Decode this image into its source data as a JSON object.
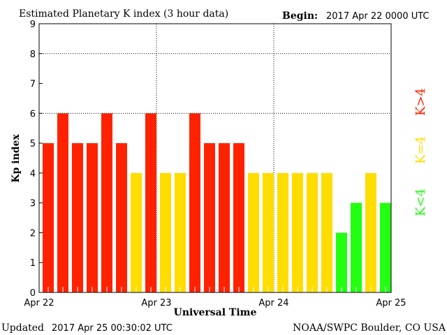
{
  "chart_data": {
    "type": "bar",
    "title": "Estimated Planetary K index (3 hour data)",
    "begin_label": "Begin:",
    "begin_value": "2017 Apr 22 0000 UTC",
    "xlabel": "Universal Time",
    "ylabel": "Kp index",
    "ylim": [
      0,
      9
    ],
    "yticks": [
      "0",
      "1",
      "2",
      "3",
      "4",
      "5",
      "6",
      "7",
      "8",
      "9"
    ],
    "xticks": [
      "Apr 22",
      "Apr 23",
      "Apr 24",
      "Apr 25"
    ],
    "grid_y": [
      6,
      8
    ],
    "values": [
      5,
      6,
      5,
      5,
      6,
      5,
      4,
      6,
      4,
      4,
      6,
      5,
      5,
      5,
      4,
      4,
      4,
      4,
      4,
      4,
      2,
      3,
      4,
      3
    ],
    "legend": [
      {
        "label": "K<4",
        "color": "#22ff11"
      },
      {
        "label": "K=4",
        "color": "#ffdd00"
      },
      {
        "label": "K>4",
        "color": "#ff2200"
      }
    ],
    "colors": {
      "low": "#22ff11",
      "mid": "#ffdd00",
      "high": "#ff2200"
    }
  },
  "footer": {
    "updated_label": "Updated",
    "updated_value": "2017 Apr 25 00:30:02 UTC",
    "credit": "NOAA/SWPC Boulder, CO USA"
  }
}
